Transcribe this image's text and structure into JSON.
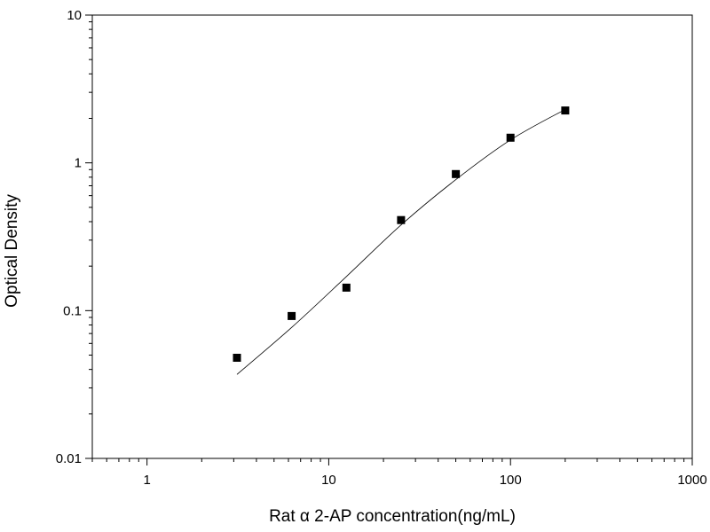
{
  "chart_data": {
    "type": "scatter",
    "title": "",
    "xlabel": "Rat α 2-AP concentration(ng/mL)",
    "ylabel": "Optical Density",
    "x_scale": "log",
    "y_scale": "log",
    "xlim": [
      0.5,
      1000
    ],
    "ylim": [
      0.01,
      10
    ],
    "x_ticks": [
      1,
      10,
      100,
      1000
    ],
    "x_tick_labels": [
      "1",
      "10",
      "100",
      "1000"
    ],
    "y_ticks": [
      0.01,
      0.1,
      1,
      10
    ],
    "y_tick_labels": [
      "0.01",
      "0.1",
      "1",
      "10"
    ],
    "grid": false,
    "legend": "none",
    "series": [
      {
        "type": "scatter",
        "marker": "square",
        "color": "#000000",
        "points": [
          {
            "x": 3.125,
            "y": 0.048
          },
          {
            "x": 6.25,
            "y": 0.092
          },
          {
            "x": 12.5,
            "y": 0.143
          },
          {
            "x": 25,
            "y": 0.41
          },
          {
            "x": 50,
            "y": 0.84
          },
          {
            "x": 100,
            "y": 1.48
          },
          {
            "x": 200,
            "y": 2.26
          }
        ]
      },
      {
        "type": "line",
        "color": "#000000",
        "points": [
          {
            "x": 3.125,
            "y": 0.037
          },
          {
            "x": 6.25,
            "y": 0.077
          },
          {
            "x": 12.5,
            "y": 0.17
          },
          {
            "x": 25,
            "y": 0.38
          },
          {
            "x": 50,
            "y": 0.77
          },
          {
            "x": 100,
            "y": 1.43
          },
          {
            "x": 200,
            "y": 2.3
          }
        ]
      }
    ]
  }
}
